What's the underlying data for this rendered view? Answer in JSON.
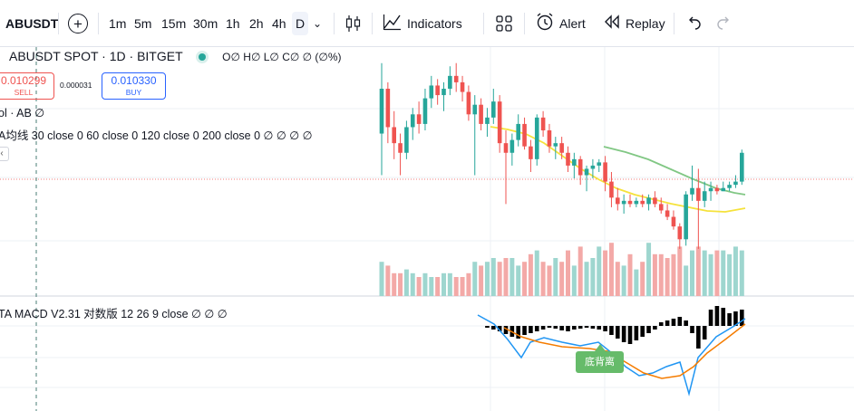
{
  "toolbar": {
    "symbol": "ABUSDT",
    "timeframes": [
      "1m",
      "5m",
      "15m",
      "30m",
      "1h",
      "2h",
      "4h",
      "D"
    ],
    "active_timeframe": "D",
    "indicators_label": "Indicators",
    "alert_label": "Alert",
    "replay_label": "Replay"
  },
  "legend": {
    "title": "ABUSDT SPOT · 1D · BITGET",
    "ohlc": "O∅ H∅ L∅ C∅ ∅ (∅%)",
    "sell_price": "0.010299",
    "sell_label": "SELL",
    "spread": "0.000031",
    "buy_price": "0.010330",
    "buy_label": "BUY",
    "volume_line": "ol · AB  ∅",
    "ma_line": "A均线 30 close 0 60 close 0 120 close 0 200 close 0  ∅  ∅  ∅  ∅",
    "macd_line": "TA MACD V2.31 对数版 12 26 9 close  ∅  ∅  ∅",
    "collapse_icon": "chevron-left-icon"
  },
  "annotation": {
    "label": "底背离",
    "color": "#66bb6a"
  },
  "colors": {
    "up": "#26a69a",
    "down": "#ef5350",
    "ma_yellow": "#f5e23b",
    "ma_green": "#81c784",
    "macd_blue": "#2196f3",
    "macd_orange": "#f57c00",
    "crosshair": "#4a7c74"
  },
  "candles": [
    [
      0.0118,
      0.014,
      0.0105,
      0.0132
    ],
    [
      0.0132,
      0.0134,
      0.0115,
      0.012
    ],
    [
      0.012,
      0.0125,
      0.011,
      0.0115
    ],
    [
      0.0115,
      0.0118,
      0.0105,
      0.0112
    ],
    [
      0.0112,
      0.0122,
      0.011,
      0.012
    ],
    [
      0.012,
      0.0126,
      0.0116,
      0.0124
    ],
    [
      0.0124,
      0.0128,
      0.0118,
      0.0121
    ],
    [
      0.0121,
      0.0132,
      0.0119,
      0.0129
    ],
    [
      0.0129,
      0.0136,
      0.0126,
      0.0133
    ],
    [
      0.0133,
      0.0135,
      0.0127,
      0.013
    ],
    [
      0.013,
      0.0134,
      0.0125,
      0.0132
    ],
    [
      0.0132,
      0.0139,
      0.013,
      0.0136
    ],
    [
      0.0136,
      0.014,
      0.0131,
      0.0134
    ],
    [
      0.0134,
      0.0136,
      0.0128,
      0.0131
    ],
    [
      0.0131,
      0.0133,
      0.0122,
      0.0124
    ],
    [
      0.0124,
      0.013,
      0.0105,
      0.0127
    ],
    [
      0.0127,
      0.0129,
      0.0119,
      0.0121
    ],
    [
      0.0121,
      0.0126,
      0.0117,
      0.0123
    ],
    [
      0.0123,
      0.0132,
      0.0121,
      0.0128
    ],
    [
      0.0128,
      0.013,
      0.0112,
      0.0115
    ],
    [
      0.0115,
      0.0119,
      0.0096,
      0.0112
    ],
    [
      0.0112,
      0.0118,
      0.0108,
      0.0116
    ],
    [
      0.0116,
      0.0124,
      0.0114,
      0.0121
    ],
    [
      0.0121,
      0.0123,
      0.0113,
      0.0114
    ],
    [
      0.0114,
      0.0116,
      0.0106,
      0.011
    ],
    [
      0.011,
      0.0124,
      0.0108,
      0.0123
    ],
    [
      0.0123,
      0.0125,
      0.0117,
      0.0119
    ],
    [
      0.0119,
      0.0121,
      0.0112,
      0.0114
    ],
    [
      0.0114,
      0.0117,
      0.011,
      0.0115
    ],
    [
      0.0115,
      0.0117,
      0.011,
      0.0112
    ],
    [
      0.0112,
      0.0114,
      0.0106,
      0.0108
    ],
    [
      0.0108,
      0.0112,
      0.0104,
      0.011
    ],
    [
      0.011,
      0.0111,
      0.0102,
      0.0105
    ],
    [
      0.0105,
      0.0108,
      0.01,
      0.0107
    ],
    [
      0.0107,
      0.011,
      0.0104,
      0.0108
    ],
    [
      0.0108,
      0.011,
      0.0106,
      0.0109
    ],
    [
      0.0109,
      0.0111,
      0.01,
      0.0103
    ],
    [
      0.0103,
      0.0106,
      0.0095,
      0.0098
    ],
    [
      0.0098,
      0.0101,
      0.0094,
      0.0096
    ],
    [
      0.0096,
      0.0099,
      0.0093,
      0.0097
    ],
    [
      0.0097,
      0.0099,
      0.0095,
      0.0096
    ],
    [
      0.0096,
      0.0098,
      0.0095,
      0.0097
    ],
    [
      0.0097,
      0.0099,
      0.0095,
      0.0096
    ],
    [
      0.0096,
      0.0099,
      0.0094,
      0.0098
    ],
    [
      0.0098,
      0.01,
      0.0095,
      0.0096
    ],
    [
      0.0096,
      0.0098,
      0.0093,
      0.0094
    ],
    [
      0.0094,
      0.0096,
      0.0091,
      0.0092
    ],
    [
      0.0092,
      0.0094,
      0.0088,
      0.0089
    ],
    [
      0.0089,
      0.009,
      0.0082,
      0.0085
    ],
    [
      0.0085,
      0.01,
      0.0083,
      0.0099
    ],
    [
      0.0099,
      0.0108,
      0.0097,
      0.0101
    ],
    [
      0.0101,
      0.0107,
      0.0082,
      0.0097
    ],
    [
      0.0097,
      0.0103,
      0.0095,
      0.01
    ],
    [
      0.01,
      0.0103,
      0.0097,
      0.0101
    ],
    [
      0.0101,
      0.0102,
      0.0099,
      0.01
    ],
    [
      0.01,
      0.0103,
      0.01,
      0.0101
    ],
    [
      0.0101,
      0.0103,
      0.01,
      0.0102
    ],
    [
      0.0102,
      0.0105,
      0.0101,
      0.0103
    ],
    [
      0.0103,
      0.0113,
      0.0102,
      0.0112
    ]
  ],
  "volumes": [
    9,
    8,
    6,
    6,
    7,
    6,
    5,
    6,
    5,
    5,
    6,
    6,
    5,
    5,
    6,
    9,
    8,
    9,
    10,
    9,
    10,
    10,
    8,
    9,
    11,
    12,
    9,
    8,
    10,
    9,
    12,
    8,
    13,
    9,
    10,
    13,
    12,
    14,
    9,
    8,
    11,
    7,
    9,
    14,
    11,
    11,
    10,
    11,
    13,
    8,
    12,
    13,
    12,
    11,
    12,
    12,
    11,
    13,
    12
  ]
}
